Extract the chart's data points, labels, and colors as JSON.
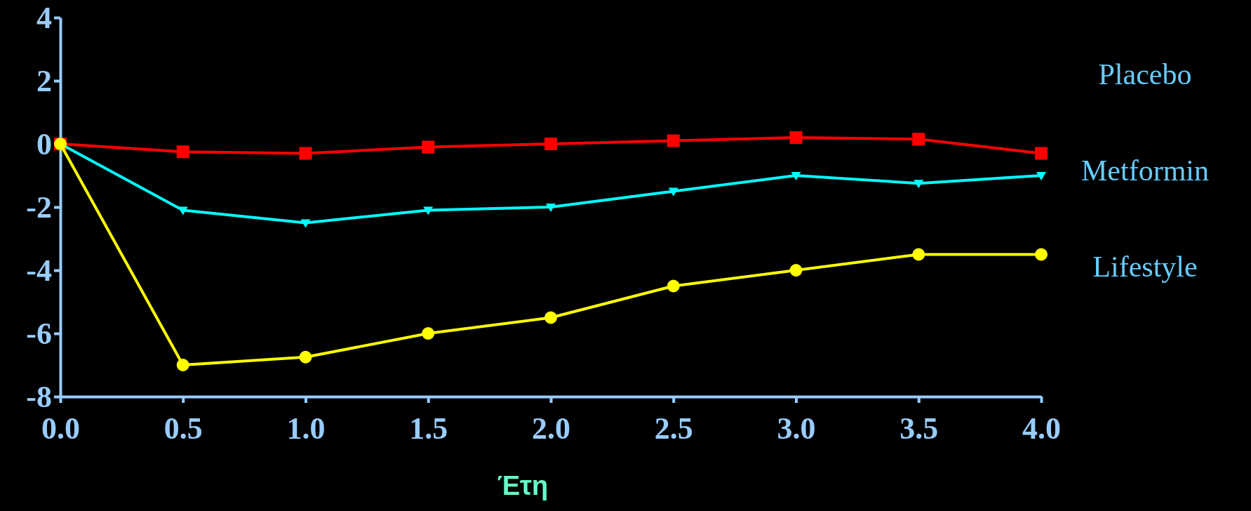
{
  "chart_data": {
    "type": "line",
    "xlabel": "Έτη",
    "x": [
      0,
      0.5,
      1,
      1.5,
      2,
      2.5,
      3,
      3.5,
      4
    ],
    "xlim": [
      0,
      4
    ],
    "xticks": [
      {
        "value": 0,
        "label": "0.0"
      },
      {
        "value": 0.5,
        "label": "0.5"
      },
      {
        "value": 1,
        "label": "1.0"
      },
      {
        "value": 1.5,
        "label": "1.5"
      },
      {
        "value": 2,
        "label": "2.0"
      },
      {
        "value": 2.5,
        "label": "2.5"
      },
      {
        "value": 3,
        "label": "3.0"
      },
      {
        "value": 3.5,
        "label": "3.5"
      },
      {
        "value": 4,
        "label": "4.0"
      }
    ],
    "ylim": [
      -8,
      4
    ],
    "yticks": [
      -8,
      -6,
      -4,
      -2,
      0,
      2,
      4
    ],
    "grid": false,
    "legend": "right",
    "line_style": "solid",
    "series": [
      {
        "name": "Placebo",
        "color": "#ff0000",
        "marker": "square",
        "values": [
          0,
          -0.25,
          -0.3,
          -0.1,
          0,
          0.1,
          0.2,
          0.15,
          -0.3
        ]
      },
      {
        "name": "Metformin",
        "color": "#00ffff",
        "marker": "triangle",
        "values": [
          0,
          -2.1,
          -2.5,
          -2.1,
          -2.0,
          -1.5,
          -1.0,
          -1.25,
          -1.0
        ]
      },
      {
        "name": "Lifestyle",
        "color": "#ffff00",
        "marker": "circle",
        "values": [
          0,
          -7.0,
          -6.75,
          -6.0,
          -5.5,
          -4.5,
          -4.0,
          -3.5,
          -3.5
        ]
      }
    ]
  }
}
